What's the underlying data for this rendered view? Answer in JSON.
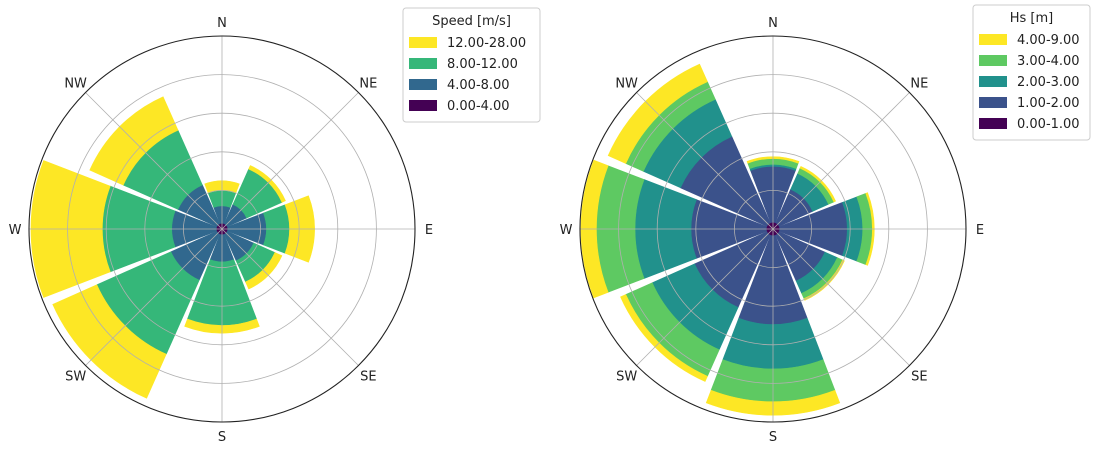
{
  "chart_data": [
    {
      "type": "windrose",
      "legend": {
        "title": "Speed [m/s]",
        "placement": "upper-right",
        "entries": [
          {
            "label": "12.00-28.00",
            "color": "#fde725"
          },
          {
            "label": "8.00-12.00",
            "color": "#35b779"
          },
          {
            "label": "4.00-8.00",
            "color": "#31688e"
          },
          {
            "label": "0.00-4.00",
            "color": "#440154"
          }
        ]
      },
      "directions": [
        "N",
        "NE",
        "E",
        "SE",
        "S",
        "SW",
        "W",
        "NW"
      ],
      "grid": true,
      "rmax": 10,
      "sectors": [
        {
          "direction": "N",
          "stack": [
            0.3,
            0.9,
            0.8,
            0.5
          ]
        },
        {
          "direction": "NE",
          "stack": [
            0.3,
            1.1,
            2.0,
            0.2
          ]
        },
        {
          "direction": "E",
          "stack": [
            0.3,
            2.0,
            1.2,
            1.3
          ]
        },
        {
          "direction": "SE",
          "stack": [
            0.3,
            1.5,
            1.2,
            0.4
          ]
        },
        {
          "direction": "S",
          "stack": [
            0.3,
            1.4,
            3.3,
            0.4
          ]
        },
        {
          "direction": "SW",
          "stack": [
            0.3,
            2.6,
            4.2,
            2.5
          ]
        },
        {
          "direction": "W",
          "stack": [
            0.3,
            2.3,
            3.6,
            3.7
          ]
        },
        {
          "direction": "NW",
          "stack": [
            0.3,
            2.2,
            3.1,
            1.9
          ]
        }
      ]
    },
    {
      "type": "windrose",
      "legend": {
        "title": "Hs [m]",
        "placement": "upper-right",
        "entries": [
          {
            "label": "4.00-9.00",
            "color": "#fde725"
          },
          {
            "label": "3.00-4.00",
            "color": "#5ec962"
          },
          {
            "label": "2.00-3.00",
            "color": "#21918c"
          },
          {
            "label": "1.00-2.00",
            "color": "#3b528b"
          },
          {
            "label": "0.00-1.00",
            "color": "#440154"
          }
        ]
      },
      "directions": [
        "N",
        "NE",
        "E",
        "SE",
        "S",
        "SW",
        "W",
        "NW"
      ],
      "grid": true,
      "rmax": 10,
      "sectors": [
        {
          "direction": "N",
          "stack": [
            0.35,
            2.9,
            0.1,
            0.3,
            0.1
          ]
        },
        {
          "direction": "NE",
          "stack": [
            0.35,
            1.9,
            0.9,
            0.3,
            0.1
          ]
        },
        {
          "direction": "E",
          "stack": [
            0.35,
            3.5,
            0.8,
            0.5,
            0.1
          ]
        },
        {
          "direction": "SE",
          "stack": [
            0.35,
            2.6,
            0.7,
            0.3,
            0.1
          ]
        },
        {
          "direction": "S",
          "stack": [
            0.35,
            4.6,
            2.3,
            1.7,
            0.7
          ]
        },
        {
          "direction": "SW",
          "stack": [
            0.35,
            4.1,
            2.4,
            1.5,
            0.3
          ]
        },
        {
          "direction": "W",
          "stack": [
            0.35,
            3.9,
            2.9,
            2.0,
            0.8
          ]
        },
        {
          "direction": "NW",
          "stack": [
            0.35,
            4.9,
            2.1,
            1.0,
            1.0
          ]
        }
      ]
    }
  ]
}
